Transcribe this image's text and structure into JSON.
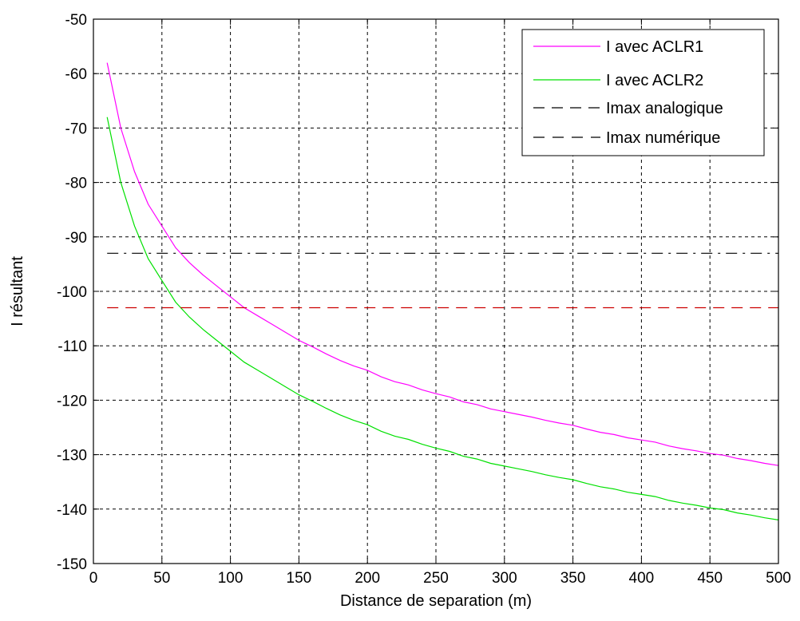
{
  "chart_data": {
    "type": "line",
    "title": "",
    "xlabel": "Distance de separation (m)",
    "ylabel": "I résultant",
    "xlim": [
      0,
      500
    ],
    "ylim": [
      -150,
      -50
    ],
    "xticks": [
      0,
      50,
      100,
      150,
      200,
      250,
      300,
      350,
      400,
      450,
      500
    ],
    "yticks": [
      -50,
      -60,
      -70,
      -80,
      -90,
      -100,
      -110,
      -120,
      -130,
      -140,
      -150
    ],
    "grid": true,
    "legend_position": "top-right",
    "series": [
      {
        "name": "I avec ACLR1",
        "color": "#ff00ff",
        "style": "solid",
        "x": [
          10,
          20,
          30,
          40,
          50,
          60,
          70,
          80,
          90,
          100,
          110,
          120,
          130,
          140,
          150,
          160,
          170,
          180,
          190,
          200,
          210,
          220,
          230,
          240,
          250,
          260,
          270,
          280,
          290,
          300,
          310,
          320,
          330,
          340,
          350,
          360,
          370,
          380,
          390,
          400,
          410,
          420,
          430,
          440,
          450,
          460,
          470,
          480,
          490,
          500
        ],
        "y": [
          -58,
          -70,
          -78,
          -84,
          -88,
          -92,
          -94.7,
          -97,
          -99,
          -101,
          -103,
          -104.5,
          -106,
          -107.5,
          -109,
          -110.2,
          -111.5,
          -112.7,
          -113.7,
          -114.5,
          -115.7,
          -116.6,
          -117.2,
          -118.1,
          -118.8,
          -119.4,
          -120.3,
          -120.8,
          -121.6,
          -122.1,
          -122.6,
          -123.1,
          -123.7,
          -124.2,
          -124.6,
          -125.3,
          -125.9,
          -126.3,
          -126.9,
          -127.3,
          -127.7,
          -128.4,
          -128.9,
          -129.3,
          -129.8,
          -130.1,
          -130.7,
          -131.1,
          -131.6,
          -132
        ]
      },
      {
        "name": "I avec ACLR2",
        "color": "#00e000",
        "style": "solid",
        "x": [
          10,
          20,
          30,
          40,
          50,
          60,
          70,
          80,
          90,
          100,
          110,
          120,
          130,
          140,
          150,
          160,
          170,
          180,
          190,
          200,
          210,
          220,
          230,
          240,
          250,
          260,
          270,
          280,
          290,
          300,
          310,
          320,
          330,
          340,
          350,
          360,
          370,
          380,
          390,
          400,
          410,
          420,
          430,
          440,
          450,
          460,
          470,
          480,
          490,
          500
        ],
        "y": [
          -68,
          -80,
          -88,
          -94,
          -98,
          -102,
          -104.7,
          -107,
          -109,
          -111,
          -113,
          -114.5,
          -116,
          -117.5,
          -119,
          -120.2,
          -121.5,
          -122.7,
          -123.7,
          -124.5,
          -125.7,
          -126.6,
          -127.2,
          -128.1,
          -128.8,
          -129.4,
          -130.3,
          -130.8,
          -131.6,
          -132.1,
          -132.6,
          -133.1,
          -133.7,
          -134.2,
          -134.6,
          -135.3,
          -135.9,
          -136.3,
          -136.9,
          -137.3,
          -137.7,
          -138.4,
          -138.9,
          -139.3,
          -139.8,
          -140.1,
          -140.7,
          -141.1,
          -141.6,
          -142
        ]
      },
      {
        "name": "Imax analogique",
        "color": "#000000",
        "style": "dashdot",
        "x": [
          10,
          500
        ],
        "y": [
          -93,
          -93
        ]
      },
      {
        "name": "Imax numérique",
        "color": "#cc0000",
        "legend_color": "#000000",
        "style": "dashed",
        "x": [
          10,
          500
        ],
        "y": [
          -103,
          -103
        ]
      }
    ]
  }
}
